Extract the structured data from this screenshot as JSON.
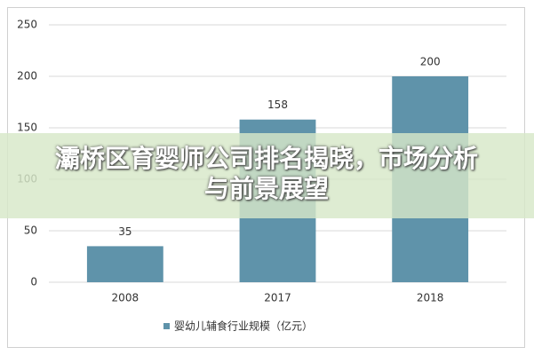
{
  "chart_data": {
    "type": "bar",
    "title": "灞桥区育婴师公司排名揭晓，市场分析与前景展望",
    "categories": [
      "2008",
      "2017",
      "2018"
    ],
    "series": [
      {
        "name": "婴幼儿辅食行业规模（亿元）",
        "color": "#5f93aa",
        "values": [
          35,
          158,
          200
        ]
      }
    ],
    "ylim": [
      0,
      250
    ],
    "yticks": [
      0,
      50,
      100,
      150,
      200,
      250
    ],
    "grid": true
  }
}
